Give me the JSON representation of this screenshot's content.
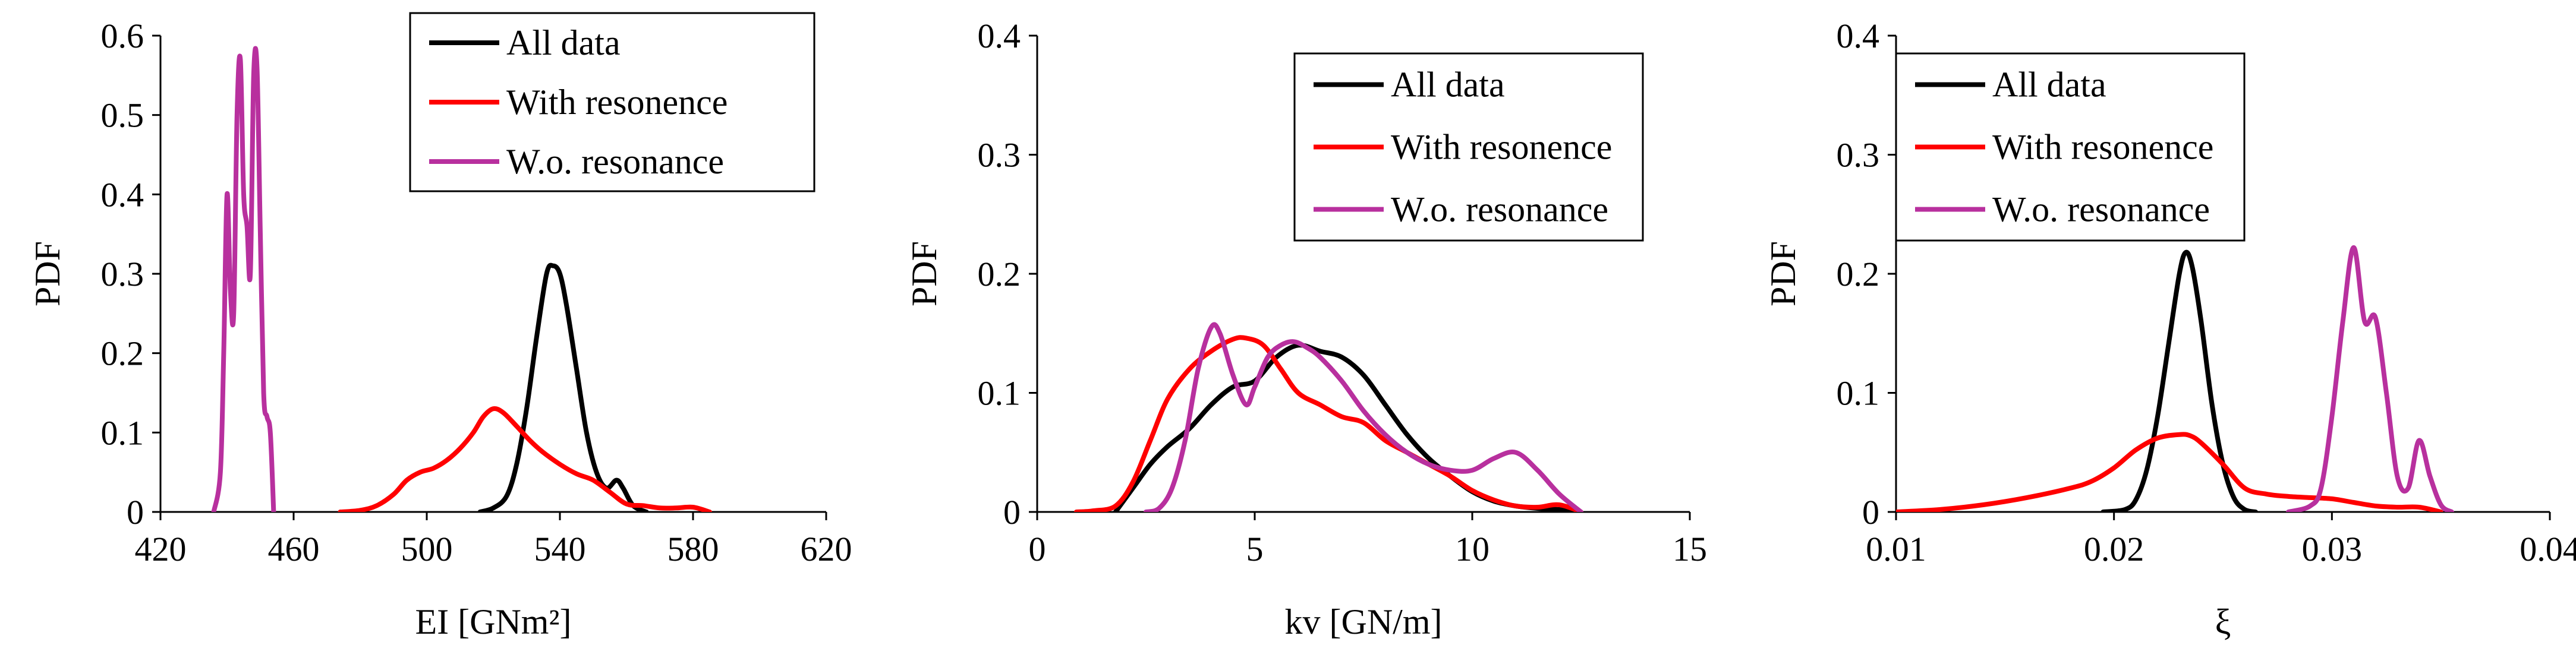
{
  "chart_data": [
    {
      "type": "line",
      "xlabel": "EI [GNm²]",
      "ylabel": "PDF",
      "xlim": [
        420,
        620
      ],
      "ylim": [
        0,
        0.6
      ],
      "xticks": [
        "420",
        "460",
        "500",
        "540",
        "580",
        "620"
      ],
      "yticks": [
        "0",
        "0.1",
        "0.2",
        "0.3",
        "0.4",
        "0.5",
        "0.6"
      ],
      "legend_position": "top-right",
      "series": [
        {
          "name": "All data",
          "color": "#000000",
          "x": [
            516,
            520,
            524,
            527,
            530,
            533,
            536,
            538,
            540,
            542,
            545,
            548,
            551,
            554,
            557,
            559,
            562,
            566
          ],
          "y": [
            0.0,
            0.005,
            0.02,
            0.06,
            0.13,
            0.22,
            0.3,
            0.31,
            0.3,
            0.26,
            0.18,
            0.1,
            0.05,
            0.03,
            0.04,
            0.03,
            0.008,
            0.0
          ]
        },
        {
          "name": "With resonence",
          "color": "#ff0000",
          "x": [
            474,
            480,
            485,
            490,
            494,
            498,
            502,
            506,
            510,
            514,
            517,
            520,
            523,
            527,
            531,
            535,
            540,
            545,
            550,
            555,
            560,
            565,
            570,
            575,
            580,
            585
          ],
          "y": [
            0.0,
            0.002,
            0.008,
            0.022,
            0.04,
            0.05,
            0.055,
            0.065,
            0.08,
            0.1,
            0.12,
            0.13,
            0.125,
            0.108,
            0.09,
            0.075,
            0.06,
            0.048,
            0.04,
            0.025,
            0.01,
            0.008,
            0.005,
            0.005,
            0.006,
            0.0
          ]
        },
        {
          "name": "W.o. resonance",
          "color": "#b8309e",
          "x": [
            436,
            438,
            439,
            440,
            441,
            442,
            443,
            444,
            445,
            446,
            447,
            448,
            449,
            450,
            451,
            452,
            453,
            454
          ],
          "y": [
            0.0,
            0.05,
            0.2,
            0.4,
            0.28,
            0.25,
            0.5,
            0.57,
            0.4,
            0.36,
            0.3,
            0.55,
            0.56,
            0.35,
            0.15,
            0.12,
            0.1,
            0.0
          ]
        }
      ]
    },
    {
      "type": "line",
      "xlabel": "kv [GN/m]",
      "ylabel": "PDF",
      "xlim": [
        0,
        15
      ],
      "ylim": [
        0,
        0.4
      ],
      "xticks": [
        "0",
        "5",
        "10",
        "15"
      ],
      "yticks": [
        "0",
        "0.1",
        "0.2",
        "0.3",
        "0.4"
      ],
      "legend_position": "top-right",
      "series": [
        {
          "name": "All data",
          "color": "#000000",
          "x": [
            1.8,
            2.2,
            2.6,
            3.0,
            3.5,
            4.0,
            4.5,
            5.0,
            5.5,
            6.0,
            6.5,
            7.0,
            7.5,
            8.0,
            8.5,
            9.0,
            9.5,
            10.0,
            10.5,
            11.0,
            11.5,
            12.0,
            12.4
          ],
          "y": [
            0.0,
            0.02,
            0.04,
            0.055,
            0.07,
            0.09,
            0.105,
            0.11,
            0.13,
            0.14,
            0.135,
            0.13,
            0.115,
            0.09,
            0.065,
            0.045,
            0.03,
            0.017,
            0.009,
            0.005,
            0.003,
            0.002,
            0.0
          ]
        },
        {
          "name": "With resonence",
          "color": "#ff0000",
          "x": [
            0.9,
            1.3,
            1.8,
            2.2,
            2.6,
            3.0,
            3.5,
            4.0,
            4.5,
            4.8,
            5.2,
            5.6,
            6.0,
            6.5,
            7.0,
            7.5,
            8.0,
            8.5,
            9.0,
            9.5,
            10.0,
            10.5,
            11.0,
            11.5,
            12.0,
            12.5
          ],
          "y": [
            0.0,
            0.001,
            0.005,
            0.025,
            0.06,
            0.095,
            0.12,
            0.135,
            0.145,
            0.146,
            0.14,
            0.12,
            0.1,
            0.09,
            0.08,
            0.075,
            0.06,
            0.05,
            0.04,
            0.03,
            0.018,
            0.01,
            0.005,
            0.004,
            0.006,
            0.0
          ]
        },
        {
          "name": "W.o. resonance",
          "color": "#b8309e",
          "x": [
            2.5,
            2.8,
            3.1,
            3.4,
            3.7,
            4.0,
            4.2,
            4.5,
            4.8,
            5.0,
            5.3,
            5.6,
            5.9,
            6.2,
            6.5,
            7.0,
            7.5,
            8.0,
            8.5,
            9.0,
            9.5,
            10.0,
            10.5,
            11.0,
            11.5,
            12.0,
            12.5
          ],
          "y": [
            0.0,
            0.003,
            0.02,
            0.06,
            0.12,
            0.155,
            0.15,
            0.115,
            0.09,
            0.105,
            0.13,
            0.14,
            0.143,
            0.138,
            0.13,
            0.11,
            0.085,
            0.065,
            0.05,
            0.04,
            0.035,
            0.035,
            0.045,
            0.05,
            0.035,
            0.015,
            0.0
          ]
        }
      ]
    },
    {
      "type": "line",
      "xlabel": "ξ",
      "ylabel": "PDF",
      "xlim": [
        0.01,
        0.04
      ],
      "ylim": [
        0,
        0.4
      ],
      "xticks": [
        "0.01",
        "0.02",
        "0.03",
        "0.04"
      ],
      "yticks": [
        "0",
        "0.1",
        "0.2",
        "0.3",
        "0.4"
      ],
      "legend_position": "top-left",
      "series": [
        {
          "name": "All data",
          "color": "#000000",
          "x": [
            0.0195,
            0.0205,
            0.021,
            0.0215,
            0.022,
            0.0225,
            0.023,
            0.0233,
            0.0236,
            0.024,
            0.0245,
            0.025,
            0.0255,
            0.026,
            0.0265
          ],
          "y": [
            0.0,
            0.002,
            0.01,
            0.035,
            0.08,
            0.14,
            0.2,
            0.218,
            0.205,
            0.16,
            0.09,
            0.04,
            0.012,
            0.002,
            0.0
          ]
        },
        {
          "name": "With resonence",
          "color": "#ff0000",
          "x": [
            0.01,
            0.012,
            0.014,
            0.016,
            0.018,
            0.019,
            0.02,
            0.021,
            0.022,
            0.023,
            0.0235,
            0.024,
            0.025,
            0.026,
            0.027,
            0.028,
            0.029,
            0.03,
            0.031,
            0.032,
            0.033,
            0.034,
            0.035
          ],
          "y": [
            0.0,
            0.002,
            0.006,
            0.012,
            0.02,
            0.026,
            0.037,
            0.052,
            0.062,
            0.065,
            0.064,
            0.058,
            0.04,
            0.02,
            0.015,
            0.013,
            0.012,
            0.011,
            0.008,
            0.005,
            0.004,
            0.004,
            0.0
          ]
        },
        {
          "name": "W.o. resonance",
          "color": "#b8309e",
          "x": [
            0.028,
            0.029,
            0.0295,
            0.03,
            0.0305,
            0.031,
            0.0315,
            0.032,
            0.0325,
            0.033,
            0.0335,
            0.034,
            0.0345,
            0.035,
            0.0355
          ],
          "y": [
            0.0,
            0.005,
            0.02,
            0.08,
            0.16,
            0.222,
            0.16,
            0.163,
            0.1,
            0.03,
            0.02,
            0.06,
            0.03,
            0.006,
            0.0
          ]
        }
      ]
    }
  ]
}
